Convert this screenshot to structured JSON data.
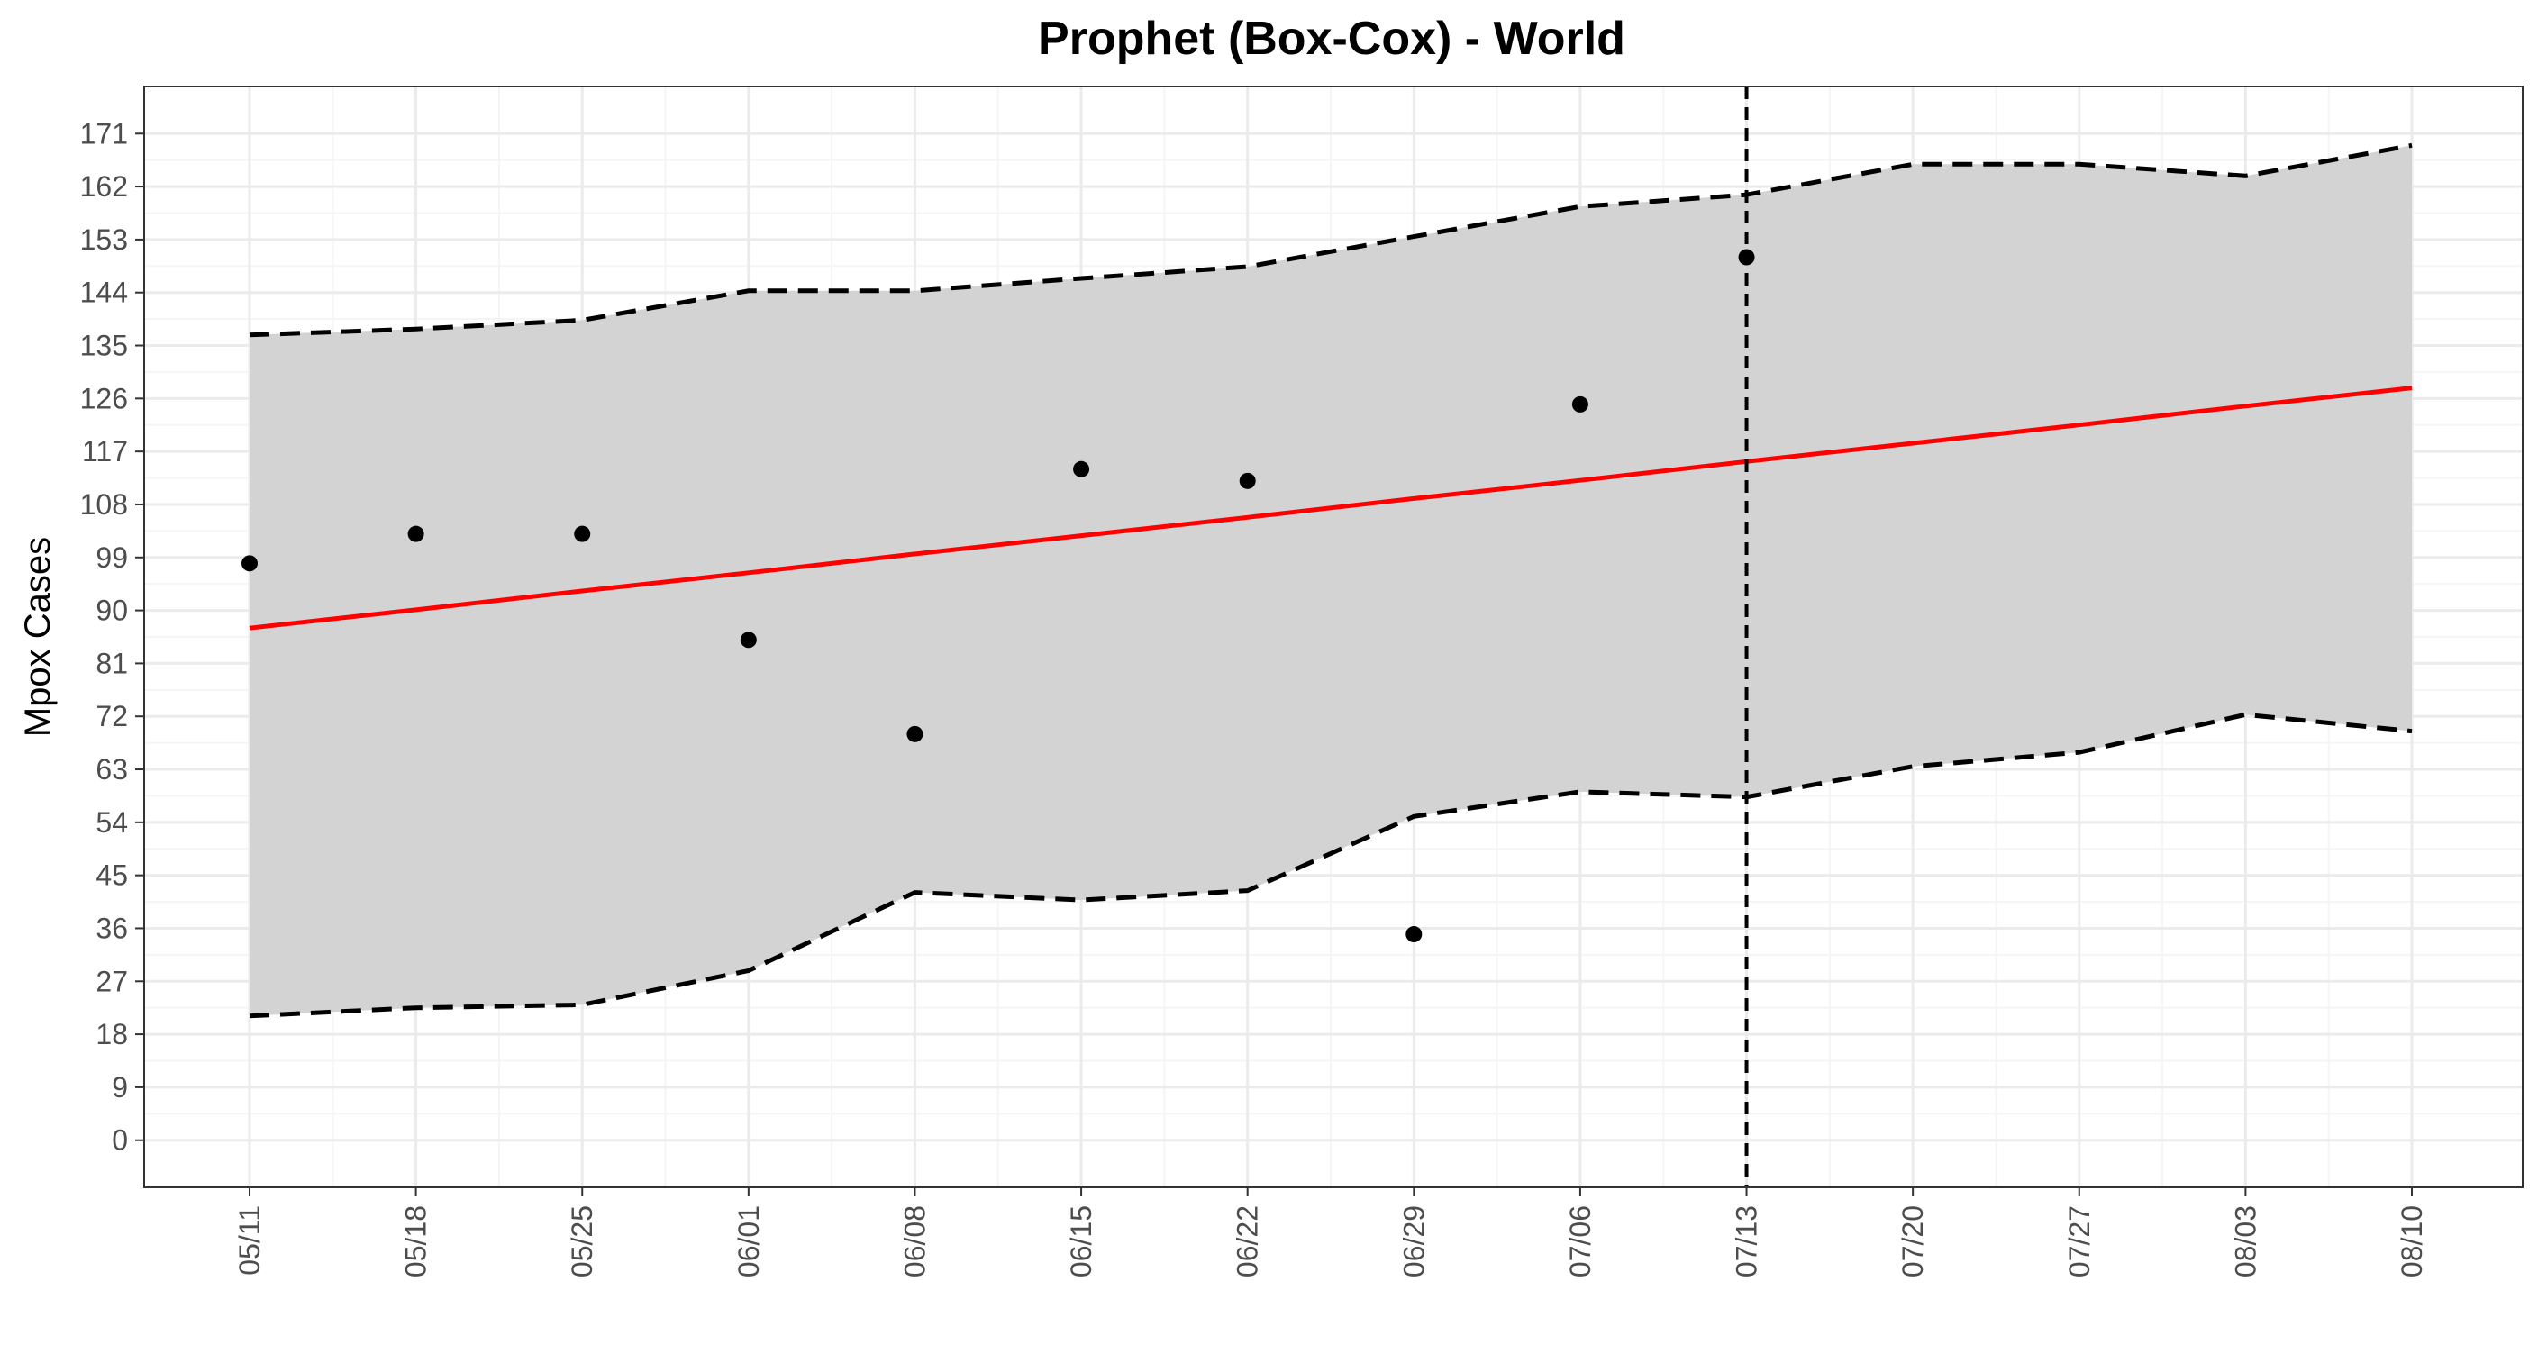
{
  "chart_data": {
    "type": "line",
    "title": "Prophet (Box-Cox) - World",
    "xlabel": "",
    "ylabel": "Mpox Cases",
    "x": [
      "05/11",
      "05/18",
      "05/25",
      "06/01",
      "06/08",
      "06/15",
      "06/22",
      "06/29",
      "07/06",
      "07/13",
      "07/20",
      "07/27",
      "08/03",
      "08/10"
    ],
    "xtick_labels": [
      "05/11",
      "05/18",
      "05/25",
      "06/01",
      "06/08",
      "06/15",
      "06/22",
      "06/29",
      "07/06",
      "07/13",
      "07/20",
      "07/27",
      "08/03",
      "08/10"
    ],
    "ytick_labels": [
      "0",
      "9",
      "18",
      "27",
      "36",
      "45",
      "54",
      "63",
      "72",
      "81",
      "90",
      "99",
      "108",
      "117",
      "126",
      "135",
      "144",
      "153",
      "162",
      "171"
    ],
    "yticks": [
      0,
      9,
      18,
      27,
      36,
      45,
      54,
      63,
      72,
      81,
      90,
      99,
      108,
      117,
      126,
      135,
      144,
      153,
      162,
      171
    ],
    "ylim": [
      -8,
      179
    ],
    "observed": {
      "x": [
        "05/11",
        "05/18",
        "05/25",
        "06/01",
        "06/08",
        "06/15",
        "06/22",
        "06/29",
        "07/06",
        "07/13"
      ],
      "values": [
        98,
        103,
        103,
        85,
        69,
        114,
        112,
        35,
        125,
        150
      ]
    },
    "forecast": {
      "values": [
        87,
        90.1,
        93.3,
        96.4,
        99.6,
        102.7,
        105.8,
        109,
        112.1,
        115.3,
        118.4,
        121.5,
        124.7,
        127.8
      ]
    },
    "upper": {
      "values": [
        136.8,
        137.8,
        139.3,
        144.3,
        144.3,
        146.4,
        148.4,
        153.5,
        158.6,
        160.6,
        165.8,
        165.8,
        163.8,
        169
      ]
    },
    "lower": {
      "values": [
        21.1,
        22.5,
        23,
        28.8,
        42.1,
        40.8,
        42.4,
        55,
        59.2,
        58.3,
        63.5,
        65.9,
        72.3,
        69.5
      ]
    },
    "cutoff_x": "07/13",
    "grid": true,
    "legend": "none",
    "colors": {
      "forecast_line": "#ff0000",
      "interval_fill": "#d3d3d3",
      "interval_line": "#000000",
      "points": "#000000",
      "cutoff_line": "#000000",
      "grid_major": "#ebebeb",
      "grid_minor": "#f5f5f5",
      "panel_border": "#333333"
    }
  }
}
